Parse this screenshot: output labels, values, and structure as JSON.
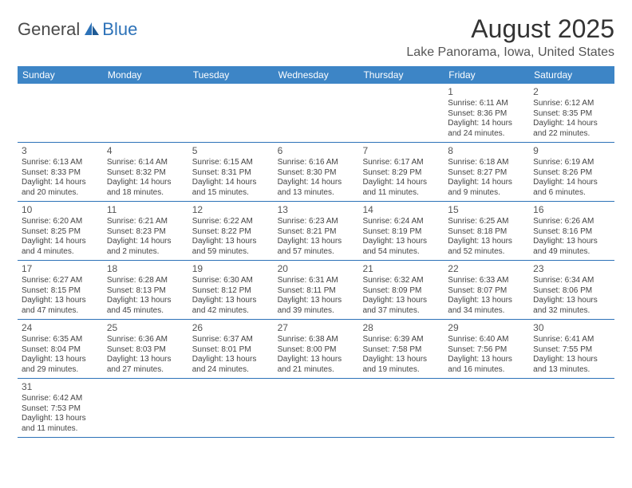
{
  "logo": {
    "text1": "General",
    "text2": "Blue",
    "brand_color": "#2d72b8"
  },
  "title": "August 2025",
  "location": "Lake Panorama, Iowa, United States",
  "colors": {
    "header_bg": "#3d85c6",
    "header_text": "#ffffff",
    "border": "#2d72b8",
    "text": "#444444"
  },
  "dow": [
    "Sunday",
    "Monday",
    "Tuesday",
    "Wednesday",
    "Thursday",
    "Friday",
    "Saturday"
  ],
  "weeks": [
    [
      null,
      null,
      null,
      null,
      null,
      {
        "n": "1",
        "sr": "6:11 AM",
        "ss": "8:36 PM",
        "dl": "14 hours and 24 minutes."
      },
      {
        "n": "2",
        "sr": "6:12 AM",
        "ss": "8:35 PM",
        "dl": "14 hours and 22 minutes."
      }
    ],
    [
      {
        "n": "3",
        "sr": "6:13 AM",
        "ss": "8:33 PM",
        "dl": "14 hours and 20 minutes."
      },
      {
        "n": "4",
        "sr": "6:14 AM",
        "ss": "8:32 PM",
        "dl": "14 hours and 18 minutes."
      },
      {
        "n": "5",
        "sr": "6:15 AM",
        "ss": "8:31 PM",
        "dl": "14 hours and 15 minutes."
      },
      {
        "n": "6",
        "sr": "6:16 AM",
        "ss": "8:30 PM",
        "dl": "14 hours and 13 minutes."
      },
      {
        "n": "7",
        "sr": "6:17 AM",
        "ss": "8:29 PM",
        "dl": "14 hours and 11 minutes."
      },
      {
        "n": "8",
        "sr": "6:18 AM",
        "ss": "8:27 PM",
        "dl": "14 hours and 9 minutes."
      },
      {
        "n": "9",
        "sr": "6:19 AM",
        "ss": "8:26 PM",
        "dl": "14 hours and 6 minutes."
      }
    ],
    [
      {
        "n": "10",
        "sr": "6:20 AM",
        "ss": "8:25 PM",
        "dl": "14 hours and 4 minutes."
      },
      {
        "n": "11",
        "sr": "6:21 AM",
        "ss": "8:23 PM",
        "dl": "14 hours and 2 minutes."
      },
      {
        "n": "12",
        "sr": "6:22 AM",
        "ss": "8:22 PM",
        "dl": "13 hours and 59 minutes."
      },
      {
        "n": "13",
        "sr": "6:23 AM",
        "ss": "8:21 PM",
        "dl": "13 hours and 57 minutes."
      },
      {
        "n": "14",
        "sr": "6:24 AM",
        "ss": "8:19 PM",
        "dl": "13 hours and 54 minutes."
      },
      {
        "n": "15",
        "sr": "6:25 AM",
        "ss": "8:18 PM",
        "dl": "13 hours and 52 minutes."
      },
      {
        "n": "16",
        "sr": "6:26 AM",
        "ss": "8:16 PM",
        "dl": "13 hours and 49 minutes."
      }
    ],
    [
      {
        "n": "17",
        "sr": "6:27 AM",
        "ss": "8:15 PM",
        "dl": "13 hours and 47 minutes."
      },
      {
        "n": "18",
        "sr": "6:28 AM",
        "ss": "8:13 PM",
        "dl": "13 hours and 45 minutes."
      },
      {
        "n": "19",
        "sr": "6:30 AM",
        "ss": "8:12 PM",
        "dl": "13 hours and 42 minutes."
      },
      {
        "n": "20",
        "sr": "6:31 AM",
        "ss": "8:11 PM",
        "dl": "13 hours and 39 minutes."
      },
      {
        "n": "21",
        "sr": "6:32 AM",
        "ss": "8:09 PM",
        "dl": "13 hours and 37 minutes."
      },
      {
        "n": "22",
        "sr": "6:33 AM",
        "ss": "8:07 PM",
        "dl": "13 hours and 34 minutes."
      },
      {
        "n": "23",
        "sr": "6:34 AM",
        "ss": "8:06 PM",
        "dl": "13 hours and 32 minutes."
      }
    ],
    [
      {
        "n": "24",
        "sr": "6:35 AM",
        "ss": "8:04 PM",
        "dl": "13 hours and 29 minutes."
      },
      {
        "n": "25",
        "sr": "6:36 AM",
        "ss": "8:03 PM",
        "dl": "13 hours and 27 minutes."
      },
      {
        "n": "26",
        "sr": "6:37 AM",
        "ss": "8:01 PM",
        "dl": "13 hours and 24 minutes."
      },
      {
        "n": "27",
        "sr": "6:38 AM",
        "ss": "8:00 PM",
        "dl": "13 hours and 21 minutes."
      },
      {
        "n": "28",
        "sr": "6:39 AM",
        "ss": "7:58 PM",
        "dl": "13 hours and 19 minutes."
      },
      {
        "n": "29",
        "sr": "6:40 AM",
        "ss": "7:56 PM",
        "dl": "13 hours and 16 minutes."
      },
      {
        "n": "30",
        "sr": "6:41 AM",
        "ss": "7:55 PM",
        "dl": "13 hours and 13 minutes."
      }
    ],
    [
      {
        "n": "31",
        "sr": "6:42 AM",
        "ss": "7:53 PM",
        "dl": "13 hours and 11 minutes."
      },
      null,
      null,
      null,
      null,
      null,
      null
    ]
  ],
  "labels": {
    "sunrise": "Sunrise: ",
    "sunset": "Sunset: ",
    "daylight": "Daylight: "
  }
}
